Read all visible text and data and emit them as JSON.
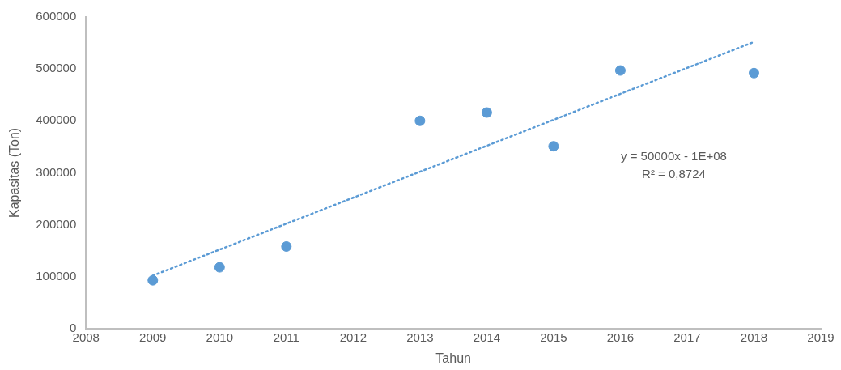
{
  "chart_data": {
    "type": "scatter",
    "xlabel": "Tahun",
    "ylabel": "Kapasitas (Ton)",
    "xlim": [
      2008,
      2019
    ],
    "xticks": [
      2008,
      2009,
      2010,
      2011,
      2012,
      2013,
      2014,
      2015,
      2016,
      2017,
      2018,
      2019
    ],
    "ylim": [
      0,
      600000
    ],
    "yticks": [
      0,
      100000,
      200000,
      300000,
      400000,
      500000,
      600000
    ],
    "grid": false,
    "legend": false,
    "marker": "circle",
    "series": [
      {
        "color": "#5b9bd5",
        "x": [
          2009,
          2010,
          2011,
          2013,
          2014,
          2015,
          2016,
          2018
        ],
        "values": [
          93000,
          118000,
          158000,
          400000,
          416000,
          351000,
          497000,
          492000
        ]
      },
      {
        "type": "line",
        "color": "#5b9bd5",
        "line_style": "dotted",
        "marker": "none",
        "x": [
          2009,
          2018
        ],
        "values": [
          102000,
          552000
        ]
      }
    ],
    "annotations": [
      "y = 50000x - 1E+08\nR² = 0,8724"
    ]
  }
}
